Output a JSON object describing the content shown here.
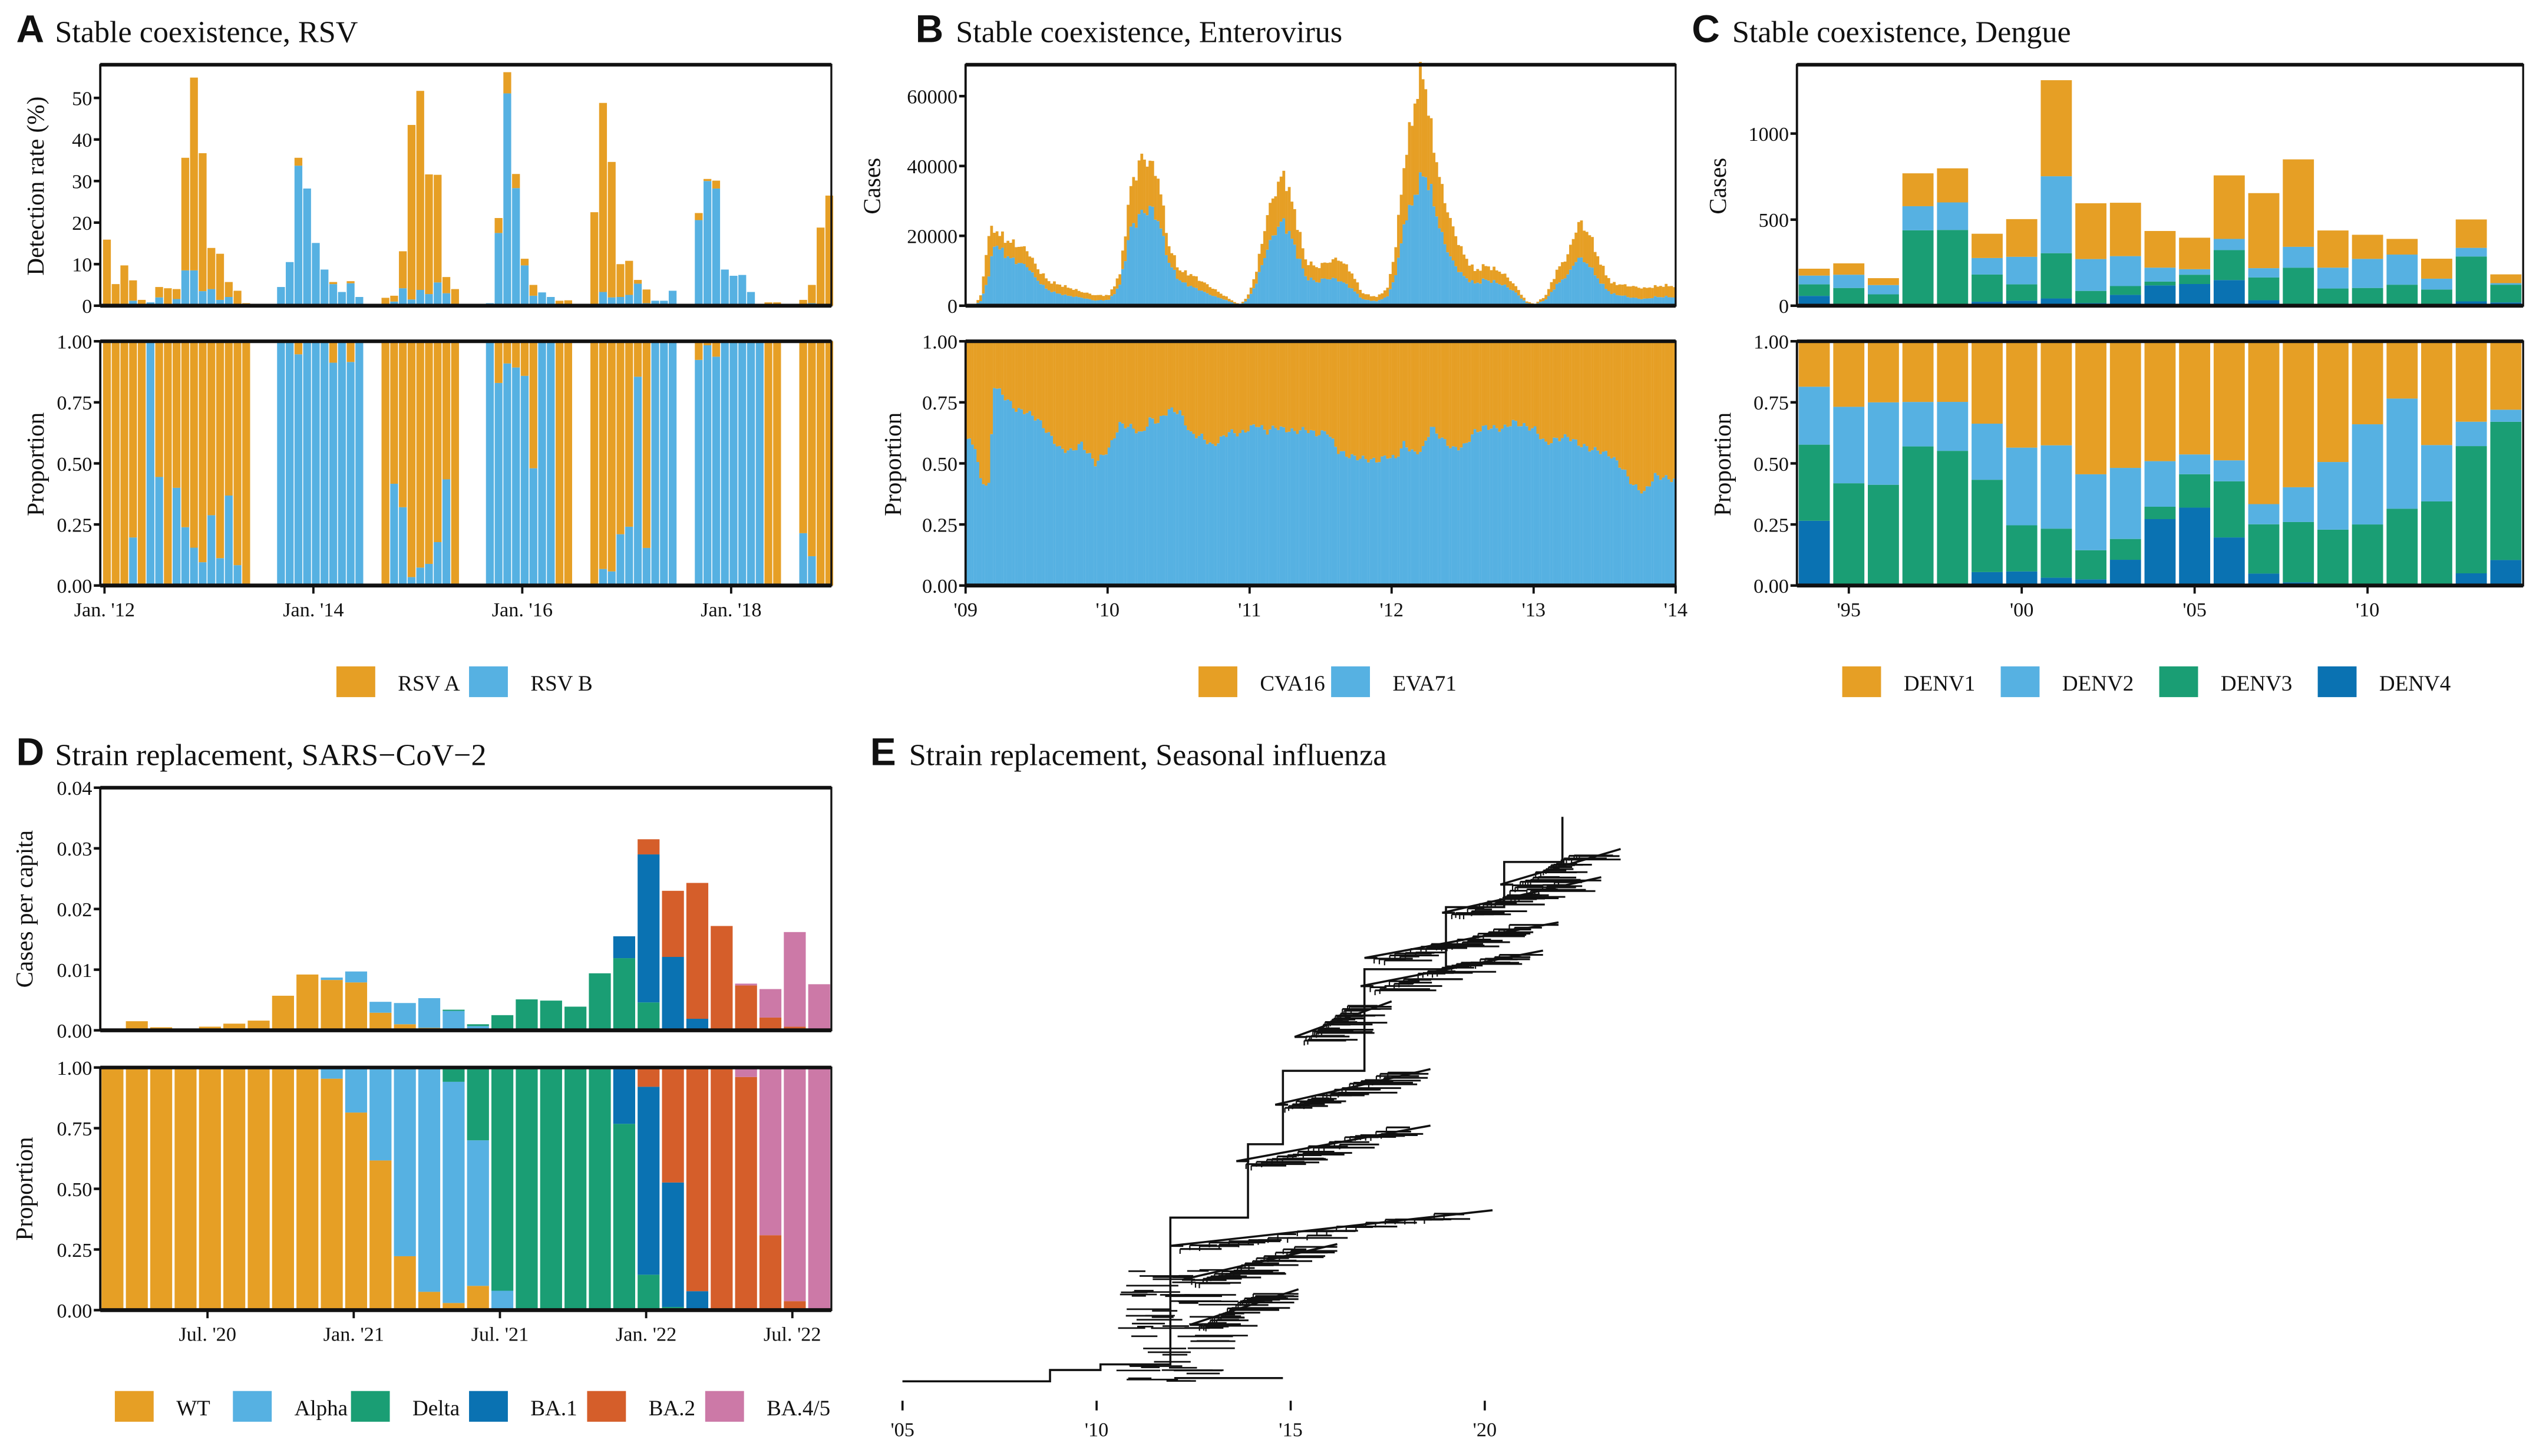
{
  "colors": {
    "orange": "#E69F25",
    "skyblue": "#56B1E2",
    "green": "#1A9E74",
    "blue": "#0A72B2",
    "vermillion": "#D55E2A",
    "pink": "#CC79A7",
    "axis": "#111111"
  },
  "chart_data": [
    {
      "id": "A",
      "letter": "A",
      "title": "Stable coexistence, RSV",
      "type": "bar",
      "stacked": true,
      "top": {
        "ylabel": "Detection rate (%)",
        "ylim": [
          0,
          58
        ],
        "yticks": [
          0,
          10,
          20,
          30,
          40,
          50
        ],
        "ytick_labels": [
          "0",
          "10",
          "20",
          "30",
          "40",
          "50"
        ]
      },
      "bottom": {
        "ylabel": "Proportion",
        "ylim": [
          0,
          1
        ],
        "yticks": [
          0,
          0.25,
          0.5,
          0.75,
          1.0
        ],
        "ytick_labels": [
          "0.00",
          "0.25",
          "0.50",
          "0.75",
          "1.00"
        ]
      },
      "xlim_months": [
        0,
        84
      ],
      "xticks": [
        0,
        24,
        48,
        72
      ],
      "xtick_labels": [
        "Jan. '12",
        "Jan. '14",
        "Jan. '16",
        "Jan. '18"
      ],
      "series_names": [
        "RSV A",
        "RSV B"
      ],
      "series_colors": [
        "#E69F25",
        "#56B1E2"
      ],
      "legend": [
        "RSV A",
        "RSV B"
      ],
      "legend_position": "bottom",
      "months": [
        0,
        1,
        2,
        3,
        4,
        5,
        6,
        7,
        8,
        9,
        10,
        11,
        12,
        13,
        14,
        15,
        16,
        17,
        20,
        21,
        22,
        23,
        24,
        25,
        26,
        27,
        28,
        29,
        32,
        33,
        34,
        35,
        36,
        37,
        38,
        39,
        40,
        44,
        45,
        46,
        47,
        48,
        49,
        50,
        51,
        52,
        53,
        56,
        57,
        58,
        59,
        60,
        61,
        62,
        63,
        64,
        65,
        68,
        69,
        70,
        71,
        72,
        73,
        74,
        75,
        76,
        77,
        80,
        81,
        82,
        83
      ],
      "rsv_b": [
        0,
        0,
        0,
        1.2,
        0,
        0.8,
        2,
        0,
        1.6,
        8.5,
        8.5,
        3.5,
        4,
        1.4,
        2.1,
        0.3,
        0,
        0,
        4.5,
        10.5,
        33.7,
        28.2,
        15.1,
        8.7,
        5.2,
        3.3,
        5.4,
        2.1,
        0,
        1,
        4.2,
        1.5,
        3.8,
        2.8,
        5.6,
        3,
        0,
        0.6,
        17.5,
        51.1,
        28.3,
        9.7,
        2.4,
        3.2,
        2.1,
        0,
        0,
        0,
        3.3,
        2,
        2.1,
        2.6,
        5.3,
        0.6,
        1.2,
        1.2,
        3.6,
        20.6,
        30,
        28.2,
        8.7,
        7.2,
        7.4,
        3.3,
        0.3,
        0,
        0,
        0.3,
        0.6
      ],
      "rsv_a": [
        15.9,
        5.2,
        9.7,
        4.9,
        1.4,
        0,
        2.5,
        4.2,
        2.4,
        27.1,
        46.4,
        33.2,
        9.9,
        11.1,
        3.6,
        3.3,
        0.6,
        0,
        0,
        0,
        1.9,
        0,
        0,
        0,
        0.5,
        0,
        0.5,
        0,
        1.9,
        1.4,
        8.9,
        42,
        47.9,
        28.8,
        25.9,
        3.9,
        4,
        0,
        3.6,
        5.1,
        3.4,
        1.6,
        2.6,
        0,
        0,
        1.2,
        1.3,
        22.5,
        45.5,
        32.6,
        7.9,
        8.2,
        0.9,
        3.3,
        0,
        0,
        0,
        1.7,
        0.5,
        1.9,
        0,
        0,
        0,
        0,
        0,
        0.8,
        0.8,
        1.1,
        4.4,
        18.8,
        26.5
      ]
    },
    {
      "id": "B",
      "letter": "B",
      "title": "Stable coexistence, Enterovirus",
      "type": "bar",
      "stacked": true,
      "top": {
        "ylabel": "Cases",
        "ylim": [
          0,
          69000
        ],
        "yticks": [
          0,
          20000,
          40000,
          60000
        ],
        "ytick_labels": [
          "0",
          "20000",
          "40000",
          "60000"
        ]
      },
      "bottom": {
        "ylabel": "Proportion",
        "ylim": [
          0,
          1
        ],
        "yticks": [
          0,
          0.25,
          0.5,
          0.75,
          1.0
        ],
        "ytick_labels": [
          "0.00",
          "0.25",
          "0.50",
          "0.75",
          "1.00"
        ]
      },
      "x_range_years": [
        2009,
        2014
      ],
      "xticks": [
        2009,
        2010,
        2011,
        2012,
        2013,
        2014
      ],
      "xtick_labels": [
        "'09",
        "'10",
        "'11",
        "'12",
        "'13",
        "'14"
      ],
      "series_names": [
        "CVA16",
        "EVA71"
      ],
      "series_colors": [
        "#E69F25",
        "#56B1E2"
      ],
      "legend": [
        "CVA16",
        "EVA71"
      ],
      "legend_position": "bottom",
      "note": "weekly series (approx. 260 weeks); values sampled at anchor weeks and interpolated",
      "anchor_weeks": [
        0,
        3,
        5,
        8,
        10,
        14,
        18,
        22,
        26,
        30,
        34,
        38,
        42,
        47,
        52,
        56,
        60,
        64,
        67,
        70,
        74,
        78,
        82,
        86,
        90,
        96,
        100,
        103,
        106,
        110,
        113,
        116,
        120,
        124,
        128,
        132,
        136,
        140,
        145,
        150,
        154,
        157,
        160,
        164,
        167,
        170,
        174,
        178,
        182,
        186,
        190,
        196,
        200,
        205,
        208,
        212,
        216,
        220,
        224,
        228,
        232,
        236,
        240,
        244,
        248,
        252,
        256,
        260
      ],
      "total_cases": [
        300,
        500,
        2800,
        20500,
        22000,
        19000,
        17500,
        16000,
        10500,
        7000,
        6000,
        5000,
        4000,
        3000,
        3000,
        9000,
        34000,
        42500,
        41000,
        37000,
        17000,
        10000,
        9000,
        7000,
        5000,
        2000,
        200,
        3000,
        10000,
        26000,
        33000,
        38000,
        27000,
        13000,
        11000,
        12500,
        13500,
        10500,
        3500,
        2500,
        5000,
        17000,
        40000,
        58000,
        68000,
        50000,
        33000,
        22000,
        14500,
        10000,
        11500,
        9500,
        6500,
        1200,
        500,
        3000,
        10000,
        14500,
        24000,
        20500,
        12000,
        6500,
        6000,
        5500,
        5000,
        5500,
        5800,
        5500
      ],
      "eva71_proportion": [
        0.6,
        0.57,
        0.43,
        0.41,
        0.82,
        0.77,
        0.72,
        0.71,
        0.68,
        0.62,
        0.56,
        0.55,
        0.58,
        0.5,
        0.56,
        0.66,
        0.65,
        0.62,
        0.68,
        0.67,
        0.72,
        0.71,
        0.62,
        0.61,
        0.57,
        0.63,
        0.62,
        0.64,
        0.66,
        0.63,
        0.65,
        0.64,
        0.63,
        0.64,
        0.62,
        0.63,
        0.55,
        0.53,
        0.52,
        0.51,
        0.53,
        0.52,
        0.58,
        0.54,
        0.56,
        0.65,
        0.6,
        0.56,
        0.57,
        0.63,
        0.65,
        0.64,
        0.67,
        0.65,
        0.64,
        0.58,
        0.6,
        0.61,
        0.58,
        0.56,
        0.55,
        0.53,
        0.48,
        0.41,
        0.38,
        0.45,
        0.44,
        0.43
      ]
    },
    {
      "id": "C",
      "letter": "C",
      "title": "Stable coexistence, Dengue",
      "type": "bar",
      "stacked": true,
      "top": {
        "ylabel": "Cases",
        "ylim": [
          0,
          1400
        ],
        "yticks": [
          0,
          500,
          1000
        ],
        "ytick_labels": [
          "0",
          "500",
          "1000"
        ]
      },
      "bottom": {
        "ylabel": "Proportion",
        "ylim": [
          0,
          1
        ],
        "yticks": [
          0,
          0.25,
          0.5,
          0.75,
          1.0
        ],
        "ytick_labels": [
          "0.00",
          "0.25",
          "0.50",
          "0.75",
          "1.00"
        ]
      },
      "categories": [
        "1994",
        "1995",
        "1996",
        "1997",
        "1998",
        "1999",
        "2000",
        "2001",
        "2002",
        "2003",
        "2004",
        "2005",
        "2006",
        "2007",
        "2008",
        "2009",
        "2010",
        "2011",
        "2012",
        "2013",
        "2014"
      ],
      "xticks": [
        "1995",
        "2000",
        "2005",
        "2010"
      ],
      "xtick_labels": [
        "'95",
        "'00",
        "'05",
        "'10"
      ],
      "series_names": [
        "DENV4",
        "DENV3",
        "DENV2",
        "DENV1"
      ],
      "series_colors": [
        "#0A72B2",
        "#1A9E74",
        "#56B1E2",
        "#E69F25"
      ],
      "legend": [
        "DENV1",
        "DENV2",
        "DENV3",
        "DENV4"
      ],
      "legend_colors": [
        "#E69F25",
        "#56B1E2",
        "#1A9E74",
        "#0A72B2"
      ],
      "legend_position": "bottom",
      "series": [
        {
          "name": "DENV4",
          "values": [
            57,
            0,
            0,
            0,
            0,
            23,
            29,
            42,
            15,
            63,
            118,
            126,
            149,
            32,
            11,
            0,
            0,
            3,
            0,
            25,
            19
          ]
        },
        {
          "name": "DENV3",
          "values": [
            67,
            103,
            66,
            438,
            440,
            158,
            95,
            263,
            71,
            51,
            22,
            54,
            174,
            132,
            210,
            100,
            103,
            119,
            94,
            261,
            103
          ]
        },
        {
          "name": "DENV2",
          "values": [
            51,
            77,
            54,
            140,
            160,
            96,
            160,
            447,
            185,
            174,
            81,
            32,
            65,
            54,
            121,
            121,
            169,
            175,
            63,
            50,
            9
          ]
        },
        {
          "name": "DENV1",
          "values": [
            40,
            66,
            40,
            191,
            198,
            141,
            219,
            558,
            324,
            310,
            213,
            183,
            369,
            436,
            508,
            216,
            140,
            91,
            116,
            165,
            51
          ]
        }
      ]
    },
    {
      "id": "D",
      "letter": "D",
      "title": "Strain replacement, SARS−CoV−2",
      "type": "bar",
      "stacked": true,
      "top": {
        "ylabel": "Cases per capita",
        "ylim": [
          0,
          0.04
        ],
        "yticks": [
          0,
          0.01,
          0.02,
          0.03,
          0.04
        ],
        "ytick_labels": [
          "0.00",
          "0.01",
          "0.02",
          "0.03",
          "0.04"
        ]
      },
      "bottom": {
        "ylabel": "Proportion",
        "ylim": [
          0,
          1
        ],
        "yticks": [
          0,
          0.25,
          0.5,
          0.75,
          1.0
        ],
        "ytick_labels": [
          "0.00",
          "0.25",
          "0.50",
          "0.75",
          "1.00"
        ]
      },
      "n_bars": 30,
      "xtick_positions_bars": [
        4.4,
        10.4,
        16.4,
        22.4,
        28.4
      ],
      "xtick_labels": [
        "Jul. '20",
        "Jan. '21",
        "Jul. '21",
        "Jan. '22",
        "Jul. '22"
      ],
      "series_names": [
        "BA.4/5",
        "BA.2",
        "BA.1",
        "Delta",
        "Alpha",
        "WT"
      ],
      "series_colors": [
        "#CC79A7",
        "#D55E2A",
        "#0A72B2",
        "#1A9E74",
        "#56B1E2",
        "#E69F25"
      ],
      "legend": [
        "WT",
        "Alpha",
        "Delta",
        "BA.1",
        "BA.2",
        "BA.4/5"
      ],
      "legend_colors": [
        "#E69F25",
        "#56B1E2",
        "#1A9E74",
        "#0A72B2",
        "#D55E2A",
        "#CC79A7"
      ],
      "legend_position": "bottom",
      "series": [
        {
          "name": "BA.4/5",
          "values": [
            0,
            0,
            0,
            0,
            0,
            0,
            0,
            0,
            0,
            0,
            0,
            0,
            0,
            0,
            0,
            0,
            0,
            0,
            0,
            0,
            0,
            0,
            0,
            0,
            0,
            0,
            0.0003,
            0.0047,
            0.0156,
            0.0076
          ]
        },
        {
          "name": "BA.2",
          "values": [
            0,
            0,
            0,
            0,
            0,
            0,
            0,
            0,
            0,
            0,
            0,
            0,
            0,
            0,
            0,
            0,
            0,
            0,
            0,
            0,
            0,
            0,
            0.0025,
            0.0109,
            0.0224,
            0.0171,
            0.0074,
            0.0021,
            0.0006,
            0
          ]
        },
        {
          "name": "BA.1",
          "values": [
            0,
            0,
            0,
            0,
            0,
            0,
            0,
            0,
            0,
            0,
            0,
            0,
            0,
            0,
            0,
            0,
            0,
            0,
            0,
            0,
            0,
            0.0036,
            0.0244,
            0.0118,
            0.0019,
            0.0001,
            0,
            0,
            0,
            0
          ]
        },
        {
          "name": "Delta",
          "values": [
            0,
            0,
            0,
            0,
            0,
            0,
            0,
            0,
            0,
            0,
            0,
            0,
            0,
            0,
            0.0002,
            0.0003,
            0.0023,
            0.0051,
            0.0049,
            0.0039,
            0.0094,
            0.0119,
            0.0046,
            0.0003,
            0,
            0,
            0,
            0,
            0,
            0
          ]
        },
        {
          "name": "Alpha",
          "values": [
            0,
            0,
            0,
            0,
            0,
            0,
            0,
            0,
            0,
            0.0004,
            0.0018,
            0.0018,
            0.0035,
            0.0049,
            0.0031,
            0.0006,
            0.0002,
            0,
            0,
            0,
            0,
            0,
            0,
            0,
            0,
            0,
            0,
            0,
            0,
            0
          ]
        },
        {
          "name": "WT",
          "values": [
            0.0003,
            0.0015,
            0.0005,
            0.0002,
            0.0006,
            0.0011,
            0.0016,
            0.0057,
            0.0092,
            0.0083,
            0.0079,
            0.0029,
            0.001,
            0.0004,
            0.0001,
            0.0001,
            0,
            0,
            0,
            0,
            0,
            0,
            0,
            0,
            0,
            0,
            0,
            0,
            0,
            0
          ]
        }
      ],
      "proportions_note": "bottom panel = each series / column total"
    },
    {
      "id": "E",
      "letter": "E",
      "title": "Strain replacement, Seasonal influenza",
      "type": "tree",
      "x_range_years": [
        2005,
        2024
      ],
      "xticks": [
        2005,
        2010,
        2015,
        2020
      ],
      "xtick_labels": [
        "'05",
        "'10",
        "'15",
        "'20"
      ],
      "description": "Time-scaled phylogenetic tree with ladder-like trunk; root near 2005, tips extending to ~2023",
      "trunk_nodes": [
        {
          "year": 2005.0,
          "rank": 0.0
        },
        {
          "year": 2008.8,
          "rank": 0.02
        },
        {
          "year": 2010.1,
          "rank": 0.03
        },
        {
          "year": 2011.9,
          "rank": 0.29
        },
        {
          "year": 2013.9,
          "rank": 0.42
        },
        {
          "year": 2014.8,
          "rank": 0.55
        },
        {
          "year": 2016.9,
          "rank": 0.73
        },
        {
          "year": 2019.0,
          "rank": 0.84
        },
        {
          "year": 2020.5,
          "rank": 0.92
        },
        {
          "year": 2022.0,
          "rank": 1.0
        }
      ],
      "side_clades": [
        {
          "start_year": 2011.9,
          "end_year": 2020.2,
          "rank": 0.24
        },
        {
          "start_year": 2012.2,
          "end_year": 2016.2,
          "rank": 0.18
        },
        {
          "start_year": 2012.4,
          "end_year": 2015.2,
          "rank": 0.1
        },
        {
          "start_year": 2013.6,
          "end_year": 2018.6,
          "rank": 0.39
        },
        {
          "start_year": 2014.6,
          "end_year": 2018.6,
          "rank": 0.49
        },
        {
          "start_year": 2015.1,
          "end_year": 2017.6,
          "rank": 0.61
        },
        {
          "start_year": 2016.8,
          "end_year": 2021.5,
          "rank": 0.7
        },
        {
          "start_year": 2016.9,
          "end_year": 2021.9,
          "rank": 0.75
        },
        {
          "start_year": 2018.9,
          "end_year": 2023.0,
          "rank": 0.83
        },
        {
          "start_year": 2020.4,
          "end_year": 2023.5,
          "rank": 0.88
        }
      ]
    }
  ]
}
